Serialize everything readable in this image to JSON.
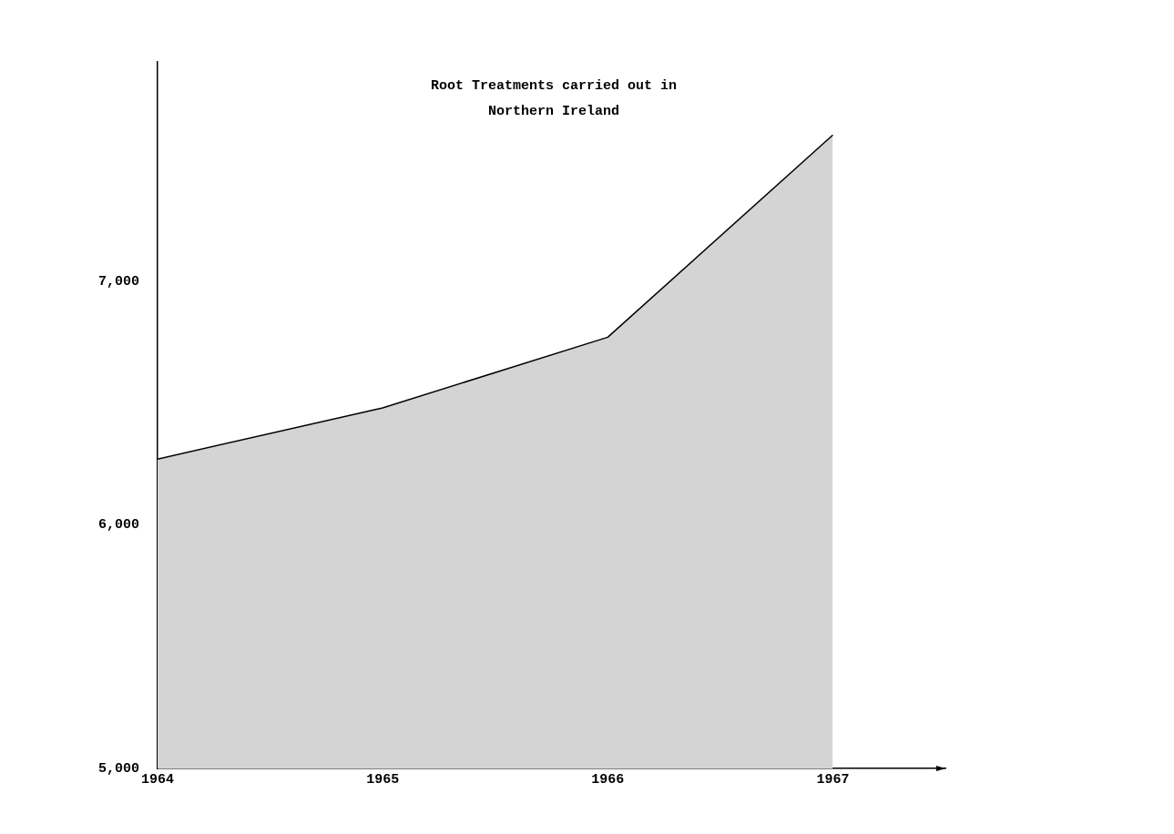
{
  "chart_data": {
    "type": "area",
    "title": "Root Treatments carried out in Northern Ireland",
    "x": [
      1964,
      1965,
      1966,
      1967
    ],
    "values": [
      6270,
      6480,
      6770,
      7600
    ],
    "color": "#000000",
    "xlim": [
      1964,
      1967.5
    ],
    "xticks": [
      {
        "value": 1964,
        "label": "1964"
      },
      1965,
      1966,
      1967
    ],
    "ylim": [
      5000,
      7900
    ],
    "yticks": [
      {
        "value": 5000,
        "label": "5,000"
      },
      {
        "value": 6000,
        "label": "6,000"
      },
      {
        "value": 7000,
        "label": "7,000"
      }
    ],
    "grid": false,
    "legend": false
  }
}
